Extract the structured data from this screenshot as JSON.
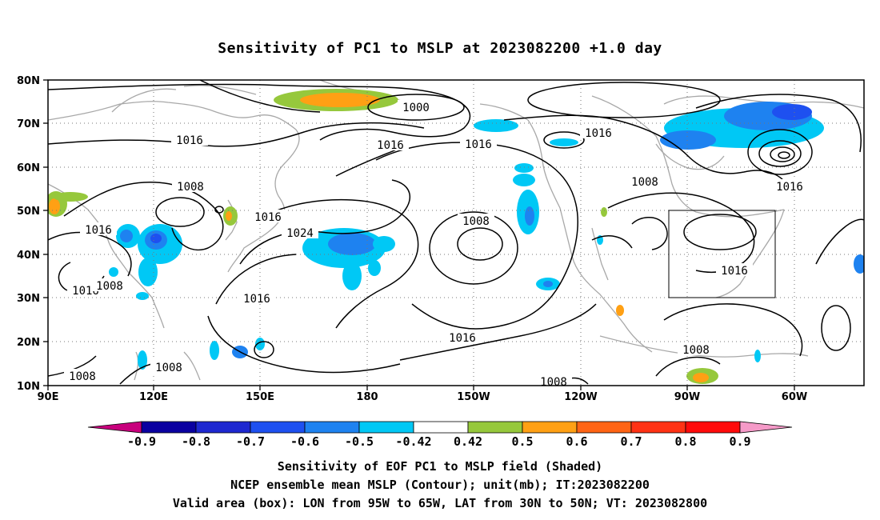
{
  "title": "Sensitivity of PC1 to MSLP at 2023082200 +1.0 day",
  "map": {
    "lat_labels": [
      "80N",
      "70N",
      "60N",
      "50N",
      "40N",
      "30N",
      "20N",
      "10N"
    ],
    "lon_labels": [
      "90E",
      "120E",
      "150E",
      "180",
      "150W",
      "120W",
      "90W",
      "60W"
    ],
    "contour_labels": [
      "1000",
      "1016",
      "1016",
      "1016",
      "1016",
      "1008",
      "1008",
      "1016",
      "1016",
      "1008",
      "1016",
      "1024",
      "1016",
      "1016",
      "1008",
      "1016",
      "1008",
      "1008",
      "1008",
      "1016",
      "1008"
    ],
    "valid_box": {
      "lon_min": -95,
      "lon_max": -65,
      "lat_min": 30,
      "lat_max": 50
    }
  },
  "colorbar": {
    "labels": [
      "-0.9",
      "-0.8",
      "-0.7",
      "-0.6",
      "-0.5",
      "-0.42",
      "0.42",
      "0.5",
      "0.6",
      "0.7",
      "0.8",
      "0.9"
    ],
    "colors": [
      "#c8007d",
      "#0a00a0",
      "#1e28d0",
      "#1e50f0",
      "#1e82f0",
      "#00c8f5",
      "#ffffff",
      "#96c83c",
      "#ffa014",
      "#ff6414",
      "#ff3214",
      "#ff0a0a",
      "#f59ac8"
    ]
  },
  "captions": [
    "Sensitivity of EOF PC1 to MSLP field (Shaded)",
    "NCEP ensemble mean MSLP (Contour); unit(mb); IT:2023082200",
    "Valid area (box): LON from 95W to 65W, LAT from 30N to 50N; VT: 2023082800"
  ]
}
